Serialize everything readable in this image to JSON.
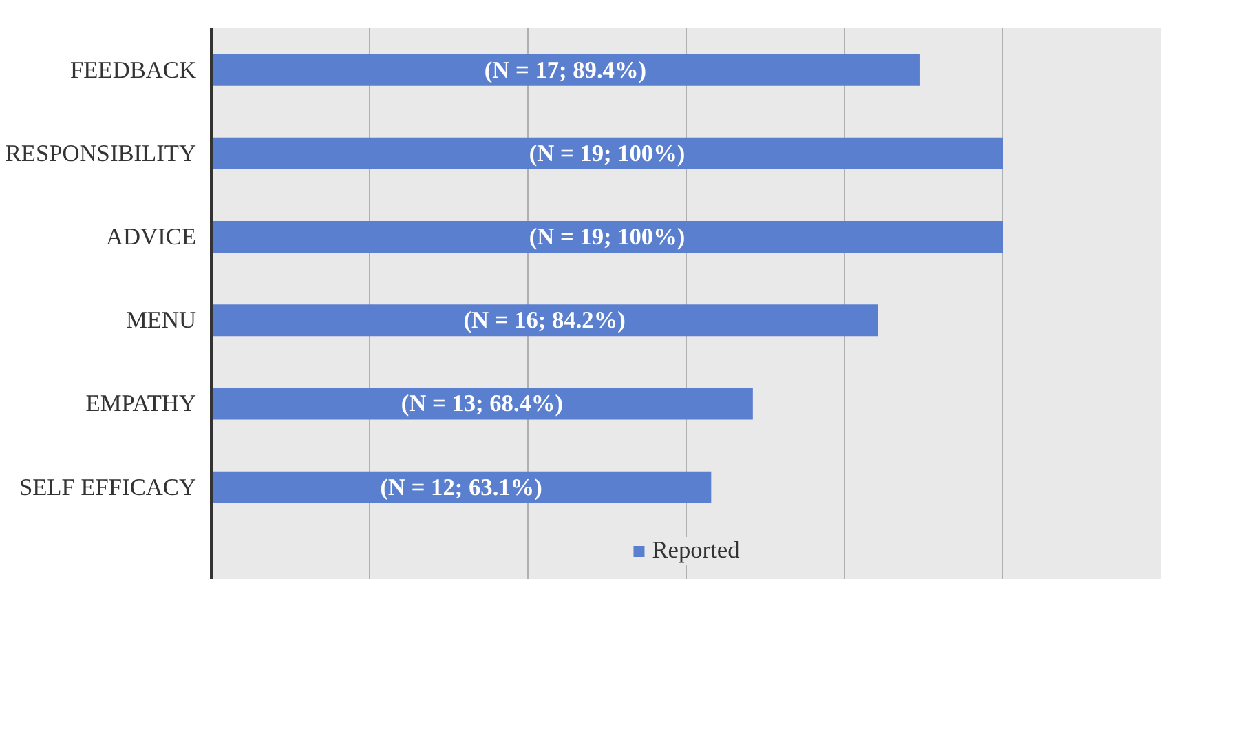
{
  "chart_data": {
    "type": "bar",
    "orientation": "horizontal",
    "tick_labels": "y",
    "categories": [
      "FEEDBACK",
      "RESPONSIBILITY",
      "ADVICE",
      "MENU",
      "EMPATHY",
      "SELF EFFICACY"
    ],
    "series": [
      {
        "name": "Reported",
        "color": "#5b7fcf",
        "values": [
          17,
          19,
          19,
          16,
          13,
          12
        ],
        "value_labels": [
          "(N = 17; 89.4%)",
          "(N = 19; 100%)",
          "(N = 19; 100%)",
          "(N = 16; 84.2%)",
          "(N = 13; 68.4%)",
          "(N = 12; 63.1%)"
        ]
      }
    ],
    "grid": "x",
    "legend": "bottom"
  }
}
